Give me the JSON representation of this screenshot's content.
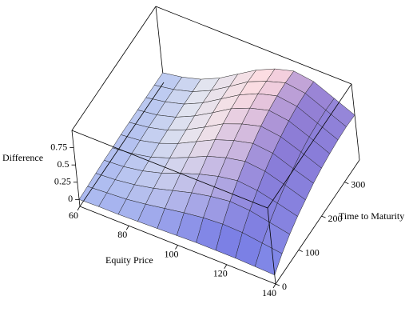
{
  "chart_data": {
    "type": "surface",
    "xlabel": "Equity Price",
    "ylabel": "Time to Maturity",
    "zlabel": "Difference",
    "x": [
      60,
      68,
      76,
      84,
      92,
      100,
      108,
      116,
      124,
      132,
      140
    ],
    "y": [
      0,
      36.5,
      73,
      109.5,
      146,
      182.5,
      219,
      255.5,
      292,
      328.5,
      365
    ],
    "z": [
      [
        0.0,
        0.01,
        0.01,
        0.02,
        0.03,
        0.04,
        0.05,
        0.05,
        0.05,
        0.04,
        0.03
      ],
      [
        0.01,
        0.03,
        0.05,
        0.09,
        0.14,
        0.19,
        0.23,
        0.25,
        0.24,
        0.2,
        0.16
      ],
      [
        0.02,
        0.04,
        0.08,
        0.14,
        0.22,
        0.3,
        0.36,
        0.4,
        0.38,
        0.32,
        0.26
      ],
      [
        0.03,
        0.05,
        0.1,
        0.18,
        0.29,
        0.39,
        0.47,
        0.52,
        0.49,
        0.42,
        0.34
      ],
      [
        0.03,
        0.06,
        0.12,
        0.22,
        0.34,
        0.47,
        0.56,
        0.62,
        0.59,
        0.5,
        0.4
      ],
      [
        0.04,
        0.07,
        0.14,
        0.25,
        0.39,
        0.53,
        0.63,
        0.7,
        0.67,
        0.56,
        0.46
      ],
      [
        0.04,
        0.08,
        0.15,
        0.27,
        0.42,
        0.58,
        0.69,
        0.77,
        0.73,
        0.62,
        0.5
      ],
      [
        0.04,
        0.08,
        0.16,
        0.29,
        0.45,
        0.62,
        0.74,
        0.82,
        0.78,
        0.66,
        0.53
      ],
      [
        0.04,
        0.09,
        0.17,
        0.3,
        0.47,
        0.64,
        0.77,
        0.85,
        0.81,
        0.68,
        0.55
      ],
      [
        0.04,
        0.09,
        0.17,
        0.3,
        0.47,
        0.65,
        0.77,
        0.86,
        0.82,
        0.69,
        0.56
      ],
      [
        0.04,
        0.09,
        0.17,
        0.3,
        0.47,
        0.64,
        0.77,
        0.85,
        0.81,
        0.68,
        0.55
      ]
    ],
    "xlim": [
      60,
      140
    ],
    "ylim": [
      0,
      365
    ],
    "zlim": [
      -0.1,
      1
    ],
    "xticks": [
      60,
      80,
      100,
      120,
      140
    ],
    "yticks": [
      0,
      100,
      200,
      300
    ],
    "zticks": [
      0,
      0.25,
      0.5,
      0.75
    ]
  }
}
